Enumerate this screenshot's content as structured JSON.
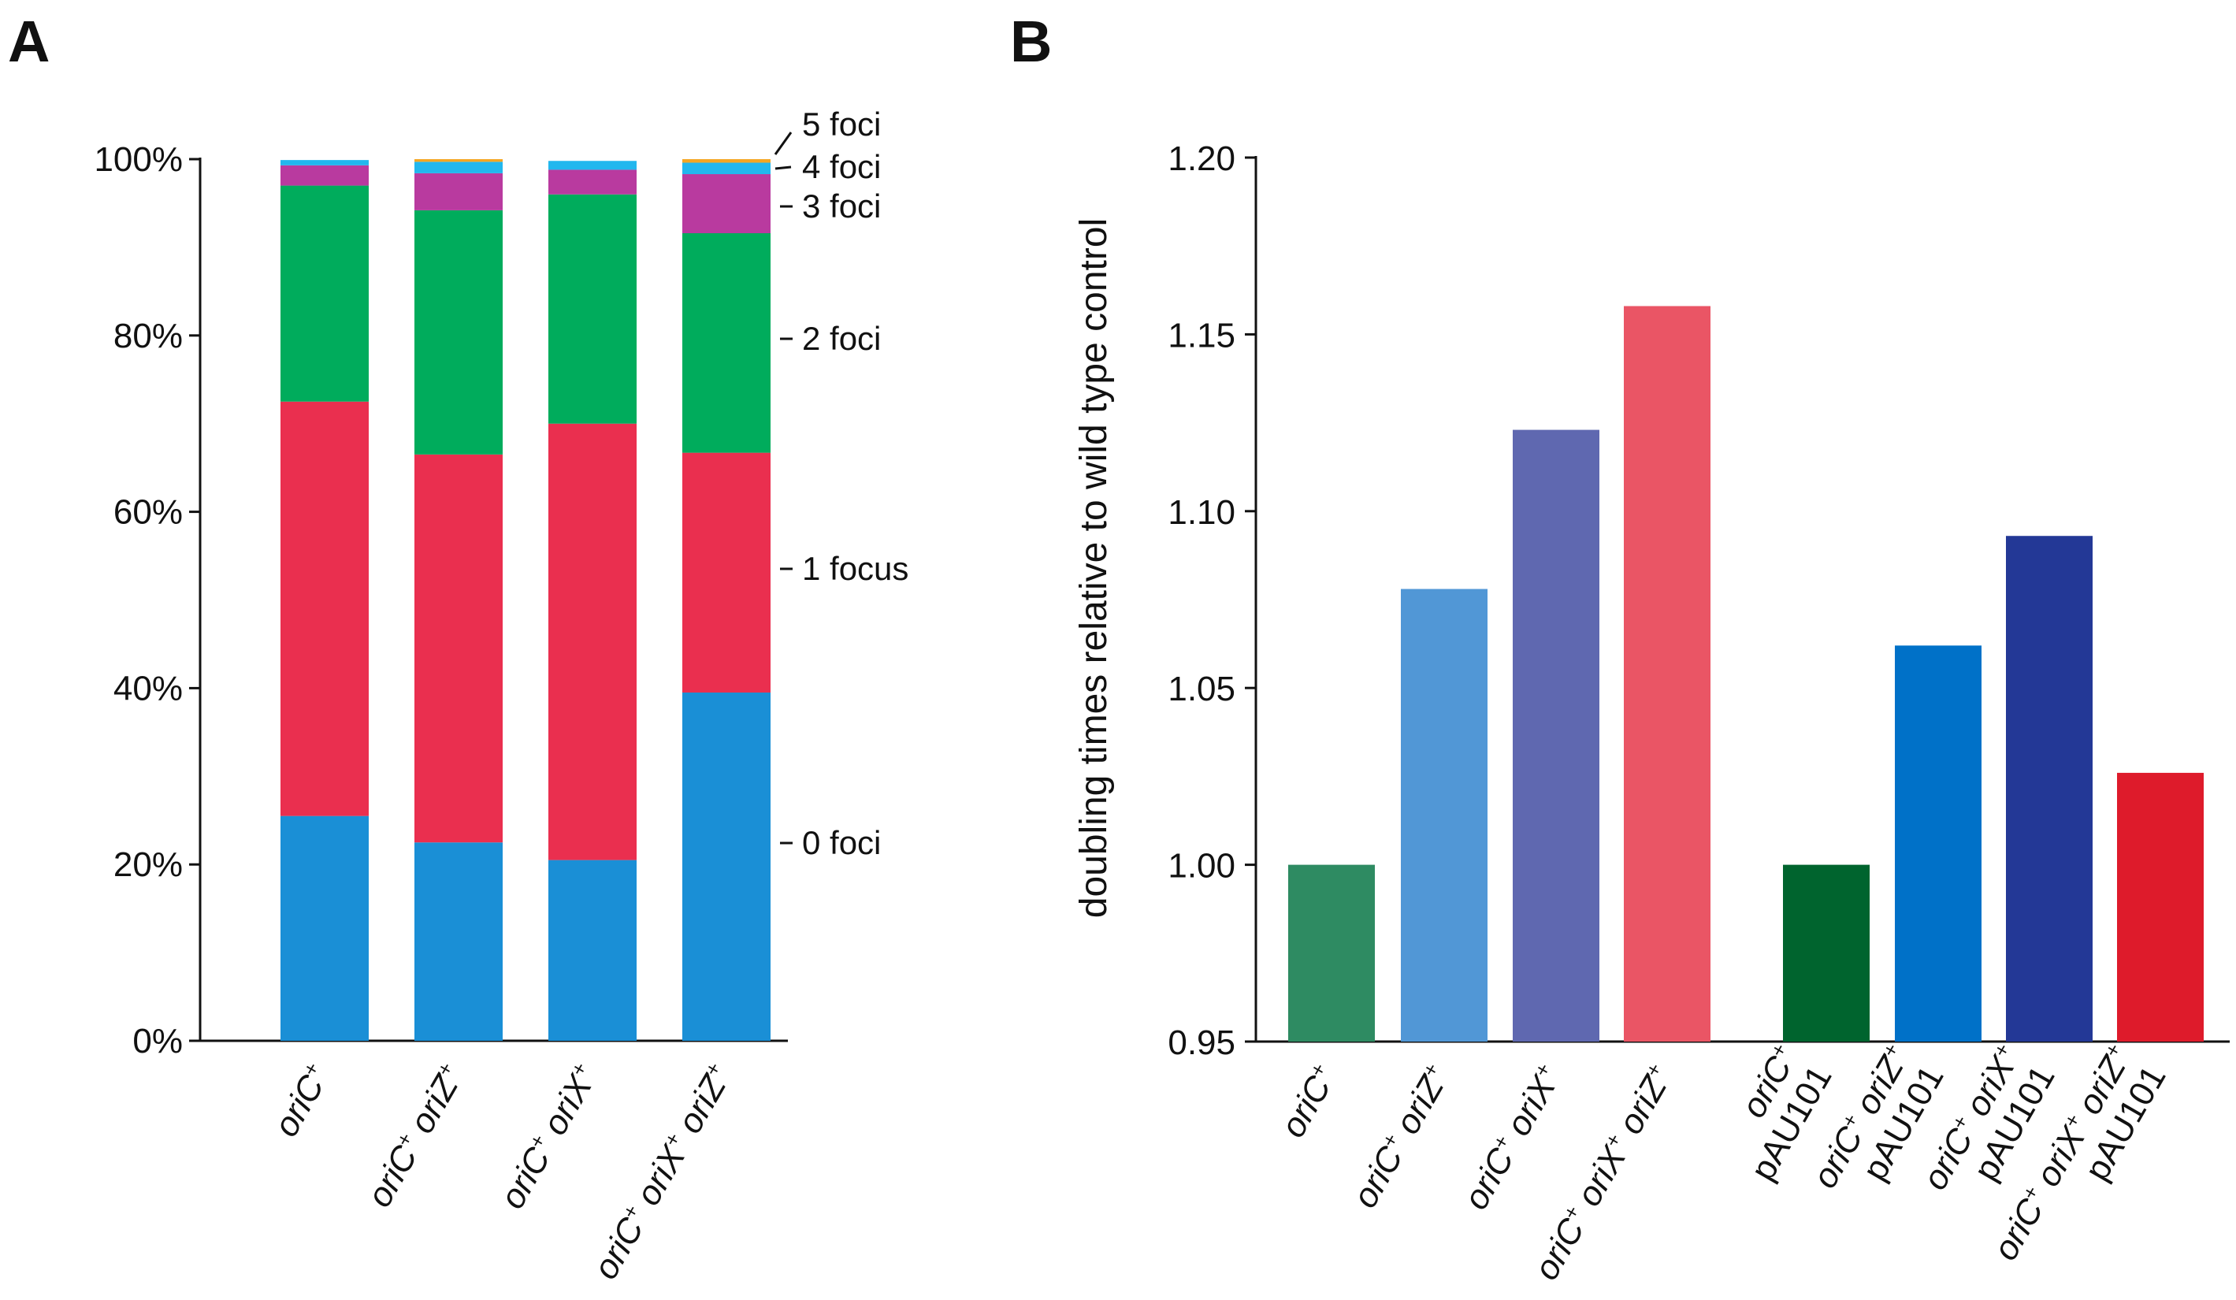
{
  "chart_data": [
    {
      "type": "bar",
      "stacked": true,
      "panel_label": "A",
      "title": "",
      "xlabel": "",
      "ylabel": "",
      "ylim": [
        0,
        100
      ],
      "yticks": [
        "0%",
        "20%",
        "40%",
        "60%",
        "80%",
        "100%"
      ],
      "ytick_values": [
        0,
        20,
        40,
        60,
        80,
        100
      ],
      "categories": [
        {
          "name": "oriC",
          "parts": [
            [
              "oriC",
              "+"
            ]
          ]
        },
        {
          "name": "oriC+ oriZ+",
          "parts": [
            [
              "oriC",
              "+"
            ],
            [
              "oriZ",
              "+"
            ]
          ]
        },
        {
          "name": "oriC+ oriX+",
          "parts": [
            [
              "oriC",
              "+"
            ],
            [
              "oriX",
              "+"
            ]
          ]
        },
        {
          "name": "oriC+ oriX+ oriZ+",
          "parts": [
            [
              "oriC",
              "+"
            ],
            [
              "oriX",
              "+"
            ],
            [
              "oriZ",
              "+"
            ]
          ]
        }
      ],
      "series": [
        {
          "name": "0 foci",
          "color": "#1a8fd6",
          "values": [
            25.5,
            22.5,
            20.5,
            39.5
          ]
        },
        {
          "name": "1 focus",
          "color": "#ea2f4f",
          "values": [
            47,
            44,
            49.5,
            27.2
          ]
        },
        {
          "name": "2 foci",
          "color": "#00ac5c",
          "values": [
            24.5,
            27.7,
            26,
            24.9
          ]
        },
        {
          "name": "3 foci",
          "color": "#b93a9f",
          "values": [
            2.3,
            4.2,
            2.8,
            6.7
          ]
        },
        {
          "name": "4 foci",
          "color": "#22b7ee",
          "values": [
            0.6,
            1.3,
            1,
            1.3
          ]
        },
        {
          "name": "5 foci",
          "color": "#f5a623",
          "values": [
            0,
            0.3,
            0,
            0.4
          ]
        }
      ],
      "legend_position": "right"
    },
    {
      "type": "bar",
      "panel_label": "B",
      "title": "",
      "xlabel": "",
      "ylabel": "doubling times relative to wild type control",
      "ylim": [
        0.95,
        1.2
      ],
      "yticks": [
        "0.95",
        "1.00",
        "1.05",
        "1.10",
        "1.15",
        "1.20"
      ],
      "ytick_values": [
        0.95,
        1.0,
        1.05,
        1.1,
        1.15,
        1.2
      ],
      "categories": [
        {
          "name": "oriC",
          "lines": [
            [
              [
                "oriC",
                "+"
              ]
            ]
          ]
        },
        {
          "name": "oriC+ oriZ+",
          "lines": [
            [
              [
                "oriC",
                "+"
              ],
              [
                "oriZ",
                "+"
              ]
            ]
          ]
        },
        {
          "name": "oriC+ oriX+",
          "lines": [
            [
              [
                "oriC",
                "+"
              ],
              [
                "oriX",
                "+"
              ]
            ]
          ]
        },
        {
          "name": "oriC+ oriX+ oriZ+",
          "lines": [
            [
              [
                "oriC",
                "+"
              ],
              [
                "oriX",
                "+"
              ],
              [
                "oriZ",
                "+"
              ]
            ]
          ]
        },
        {
          "name": "oriC+ pAU101",
          "lines": [
            [
              [
                "oriC",
                "+"
              ]
            ],
            [
              [
                "pAU101",
                ""
              ]
            ]
          ]
        },
        {
          "name": "oriC+ oriZ+ pAU101",
          "lines": [
            [
              [
                "oriC",
                "+"
              ],
              [
                "oriZ",
                "+"
              ]
            ],
            [
              [
                "pAU101",
                ""
              ]
            ]
          ]
        },
        {
          "name": "oriC+ oriX+ pAU101",
          "lines": [
            [
              [
                "oriC",
                "+"
              ],
              [
                "oriX",
                "+"
              ]
            ],
            [
              [
                "pAU101",
                ""
              ]
            ]
          ]
        },
        {
          "name": "oriC+ oriX+ oriZ+ pAU101",
          "lines": [
            [
              [
                "oriC",
                "+"
              ],
              [
                "oriX",
                "+"
              ],
              [
                "oriZ",
                "+"
              ]
            ],
            [
              [
                "pAU101",
                ""
              ]
            ]
          ]
        }
      ],
      "values": [
        1.0,
        1.078,
        1.123,
        1.158,
        1.0,
        1.062,
        1.093,
        1.026
      ],
      "colors": [
        "#2e8b62",
        "#5197d6",
        "#5f68b0",
        "#ea5565",
        "#00642e",
        "#0071c8",
        "#233896",
        "#de1b2b"
      ]
    }
  ]
}
